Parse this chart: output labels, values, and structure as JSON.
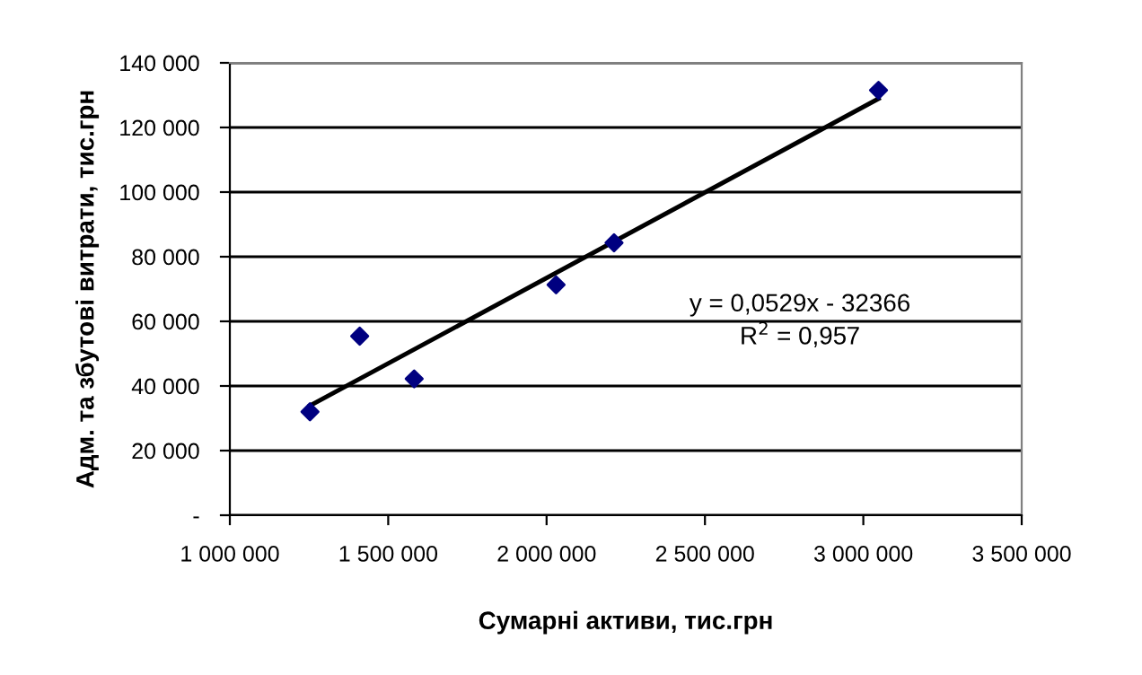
{
  "chart_data": {
    "type": "scatter",
    "xlabel": "Сумарні активи, тис.грн",
    "ylabel": "Адм. та збутові витрати, тис.грн",
    "series": [
      {
        "color": "#000080",
        "marker": "diamond",
        "x": [
          1253000,
          1410000,
          1582000,
          2030000,
          2213000,
          3048000
        ],
        "values": [
          32000,
          55400,
          42200,
          71300,
          84300,
          131500
        ]
      },
      {
        "type": "line",
        "color": "#000000",
        "marker": "none",
        "line_style": "solid",
        "x": [
          1253000,
          3048000
        ],
        "values": [
          33900,
          128900
        ]
      }
    ],
    "xlim": [
      1000000,
      3500000
    ],
    "xticks": [
      {
        "value": 1000000,
        "label": "1 000 000"
      },
      {
        "value": 1500000,
        "label": "1 500 000"
      },
      {
        "value": 2000000,
        "label": "2 000 000"
      },
      {
        "value": 2500000,
        "label": "2 500 000"
      },
      {
        "value": 3000000,
        "label": "3 000 000"
      },
      {
        "value": 3500000,
        "label": "3 500 000"
      }
    ],
    "ylim": [
      0,
      140000
    ],
    "yticks": [
      {
        "value": 0,
        "label": "-"
      },
      {
        "value": 20000,
        "label": "20 000"
      },
      {
        "value": 40000,
        "label": "40 000"
      },
      {
        "value": 60000,
        "label": "60 000"
      },
      {
        "value": 80000,
        "label": "80 000"
      },
      {
        "value": 100000,
        "label": "100 000"
      },
      {
        "value": 120000,
        "label": "120 000"
      },
      {
        "value": 140000,
        "label": "140 000"
      }
    ],
    "grid": "y",
    "annotations": [
      "y = 0,0529x - 32366",
      "R$^{2}$ = 0,957"
    ]
  }
}
